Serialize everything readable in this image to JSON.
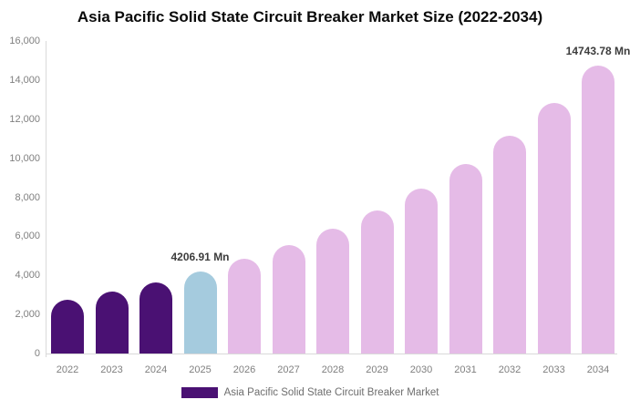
{
  "title": "Asia Pacific Solid State Circuit Breaker Market Size (2022-2034)",
  "chart_data": {
    "type": "bar",
    "title": "Asia Pacific Solid State Circuit Breaker Market Size (2022-2034)",
    "xlabel": "",
    "ylabel": "",
    "ylim": [
      0,
      16000
    ],
    "grid": false,
    "legend_position": "bottom",
    "categories": [
      "2022",
      "2023",
      "2024",
      "2025",
      "2026",
      "2027",
      "2028",
      "2029",
      "2030",
      "2031",
      "2032",
      "2033",
      "2034"
    ],
    "series": [
      {
        "name": "Asia Pacific Solid State Circuit Breaker Market",
        "values": [
          2770,
          3184,
          3660,
          4206.91,
          4836,
          5559,
          6389,
          7344,
          8442,
          9704,
          11155,
          12822,
          14743.78
        ]
      }
    ],
    "y_ticks": [
      {
        "value": 0,
        "label": "0"
      },
      {
        "value": 2000,
        "label": "2,000"
      },
      {
        "value": 4000,
        "label": "4,000"
      },
      {
        "value": 6000,
        "label": "6,000"
      },
      {
        "value": 8000,
        "label": "8,000"
      },
      {
        "value": 10000,
        "label": "10,000"
      },
      {
        "value": 12000,
        "label": "12,000"
      },
      {
        "value": 14000,
        "label": "14,000"
      },
      {
        "value": 16000,
        "label": "16,000"
      }
    ],
    "bar_colors": [
      "#4a1173",
      "#4a1173",
      "#4a1173",
      "#a5cbde",
      "#e5bbe7",
      "#e5bbe7",
      "#e5bbe7",
      "#e5bbe7",
      "#e5bbe7",
      "#e5bbe7",
      "#e5bbe7",
      "#e5bbe7",
      "#e5bbe7"
    ],
    "point_labels": [
      {
        "index": 3,
        "text": "4206.91 Mn"
      },
      {
        "index": 12,
        "text": "14743.78 Mn"
      }
    ]
  },
  "legend": {
    "label": "Asia Pacific Solid State Circuit Breaker Market",
    "swatch_color": "#4a1173"
  },
  "colors": {
    "title_color": "#0a0a0a",
    "axis_line_color": "#d9d9d9",
    "tick_color": "#7f7f7f",
    "point_label_color": "#3c3c3c",
    "legend_text_color": "#6e6e6e",
    "historical_bar": "#4a1173",
    "base_year_bar": "#a5cbde",
    "forecast_bar": "#e5bbe7"
  }
}
